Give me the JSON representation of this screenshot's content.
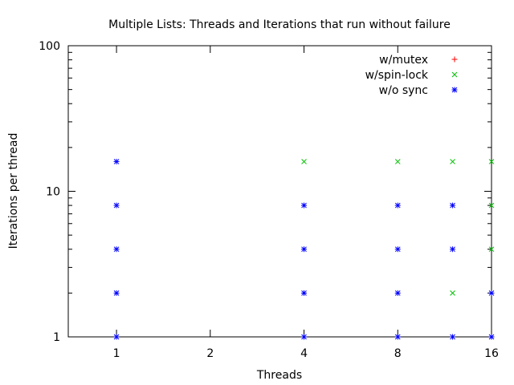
{
  "chart_data": {
    "type": "scatter",
    "title": "Multiple Lists: Threads and Iterations that run without failure",
    "xlabel": "Threads",
    "ylabel": "Iterations per thread",
    "x_scale": "log2",
    "y_scale": "log10",
    "xlim": [
      0.7,
      16
    ],
    "ylim": [
      1,
      100
    ],
    "x_ticks": [
      1,
      2,
      4,
      8,
      16
    ],
    "y_ticks": [
      1,
      10,
      100
    ],
    "grid": false,
    "legend_position": "top-right",
    "series": [
      {
        "name": "w/mutex",
        "marker": "plus",
        "color": "#ff0000",
        "points": []
      },
      {
        "name": "w/spin-lock",
        "marker": "cross",
        "color": "#00c000",
        "points": [
          [
            4,
            16
          ],
          [
            8,
            16
          ],
          [
            12,
            2
          ],
          [
            12,
            16
          ],
          [
            16,
            4
          ],
          [
            16,
            8
          ],
          [
            16,
            16
          ]
        ]
      },
      {
        "name": "w/o sync",
        "marker": "star",
        "color": "#0000ff",
        "points": [
          [
            1,
            1
          ],
          [
            1,
            2
          ],
          [
            1,
            4
          ],
          [
            1,
            8
          ],
          [
            1,
            16
          ],
          [
            4,
            1
          ],
          [
            4,
            2
          ],
          [
            4,
            4
          ],
          [
            4,
            8
          ],
          [
            8,
            1
          ],
          [
            8,
            2
          ],
          [
            8,
            4
          ],
          [
            8,
            8
          ],
          [
            12,
            1
          ],
          [
            12,
            4
          ],
          [
            12,
            8
          ],
          [
            16,
            1
          ],
          [
            16,
            2
          ]
        ]
      }
    ]
  }
}
